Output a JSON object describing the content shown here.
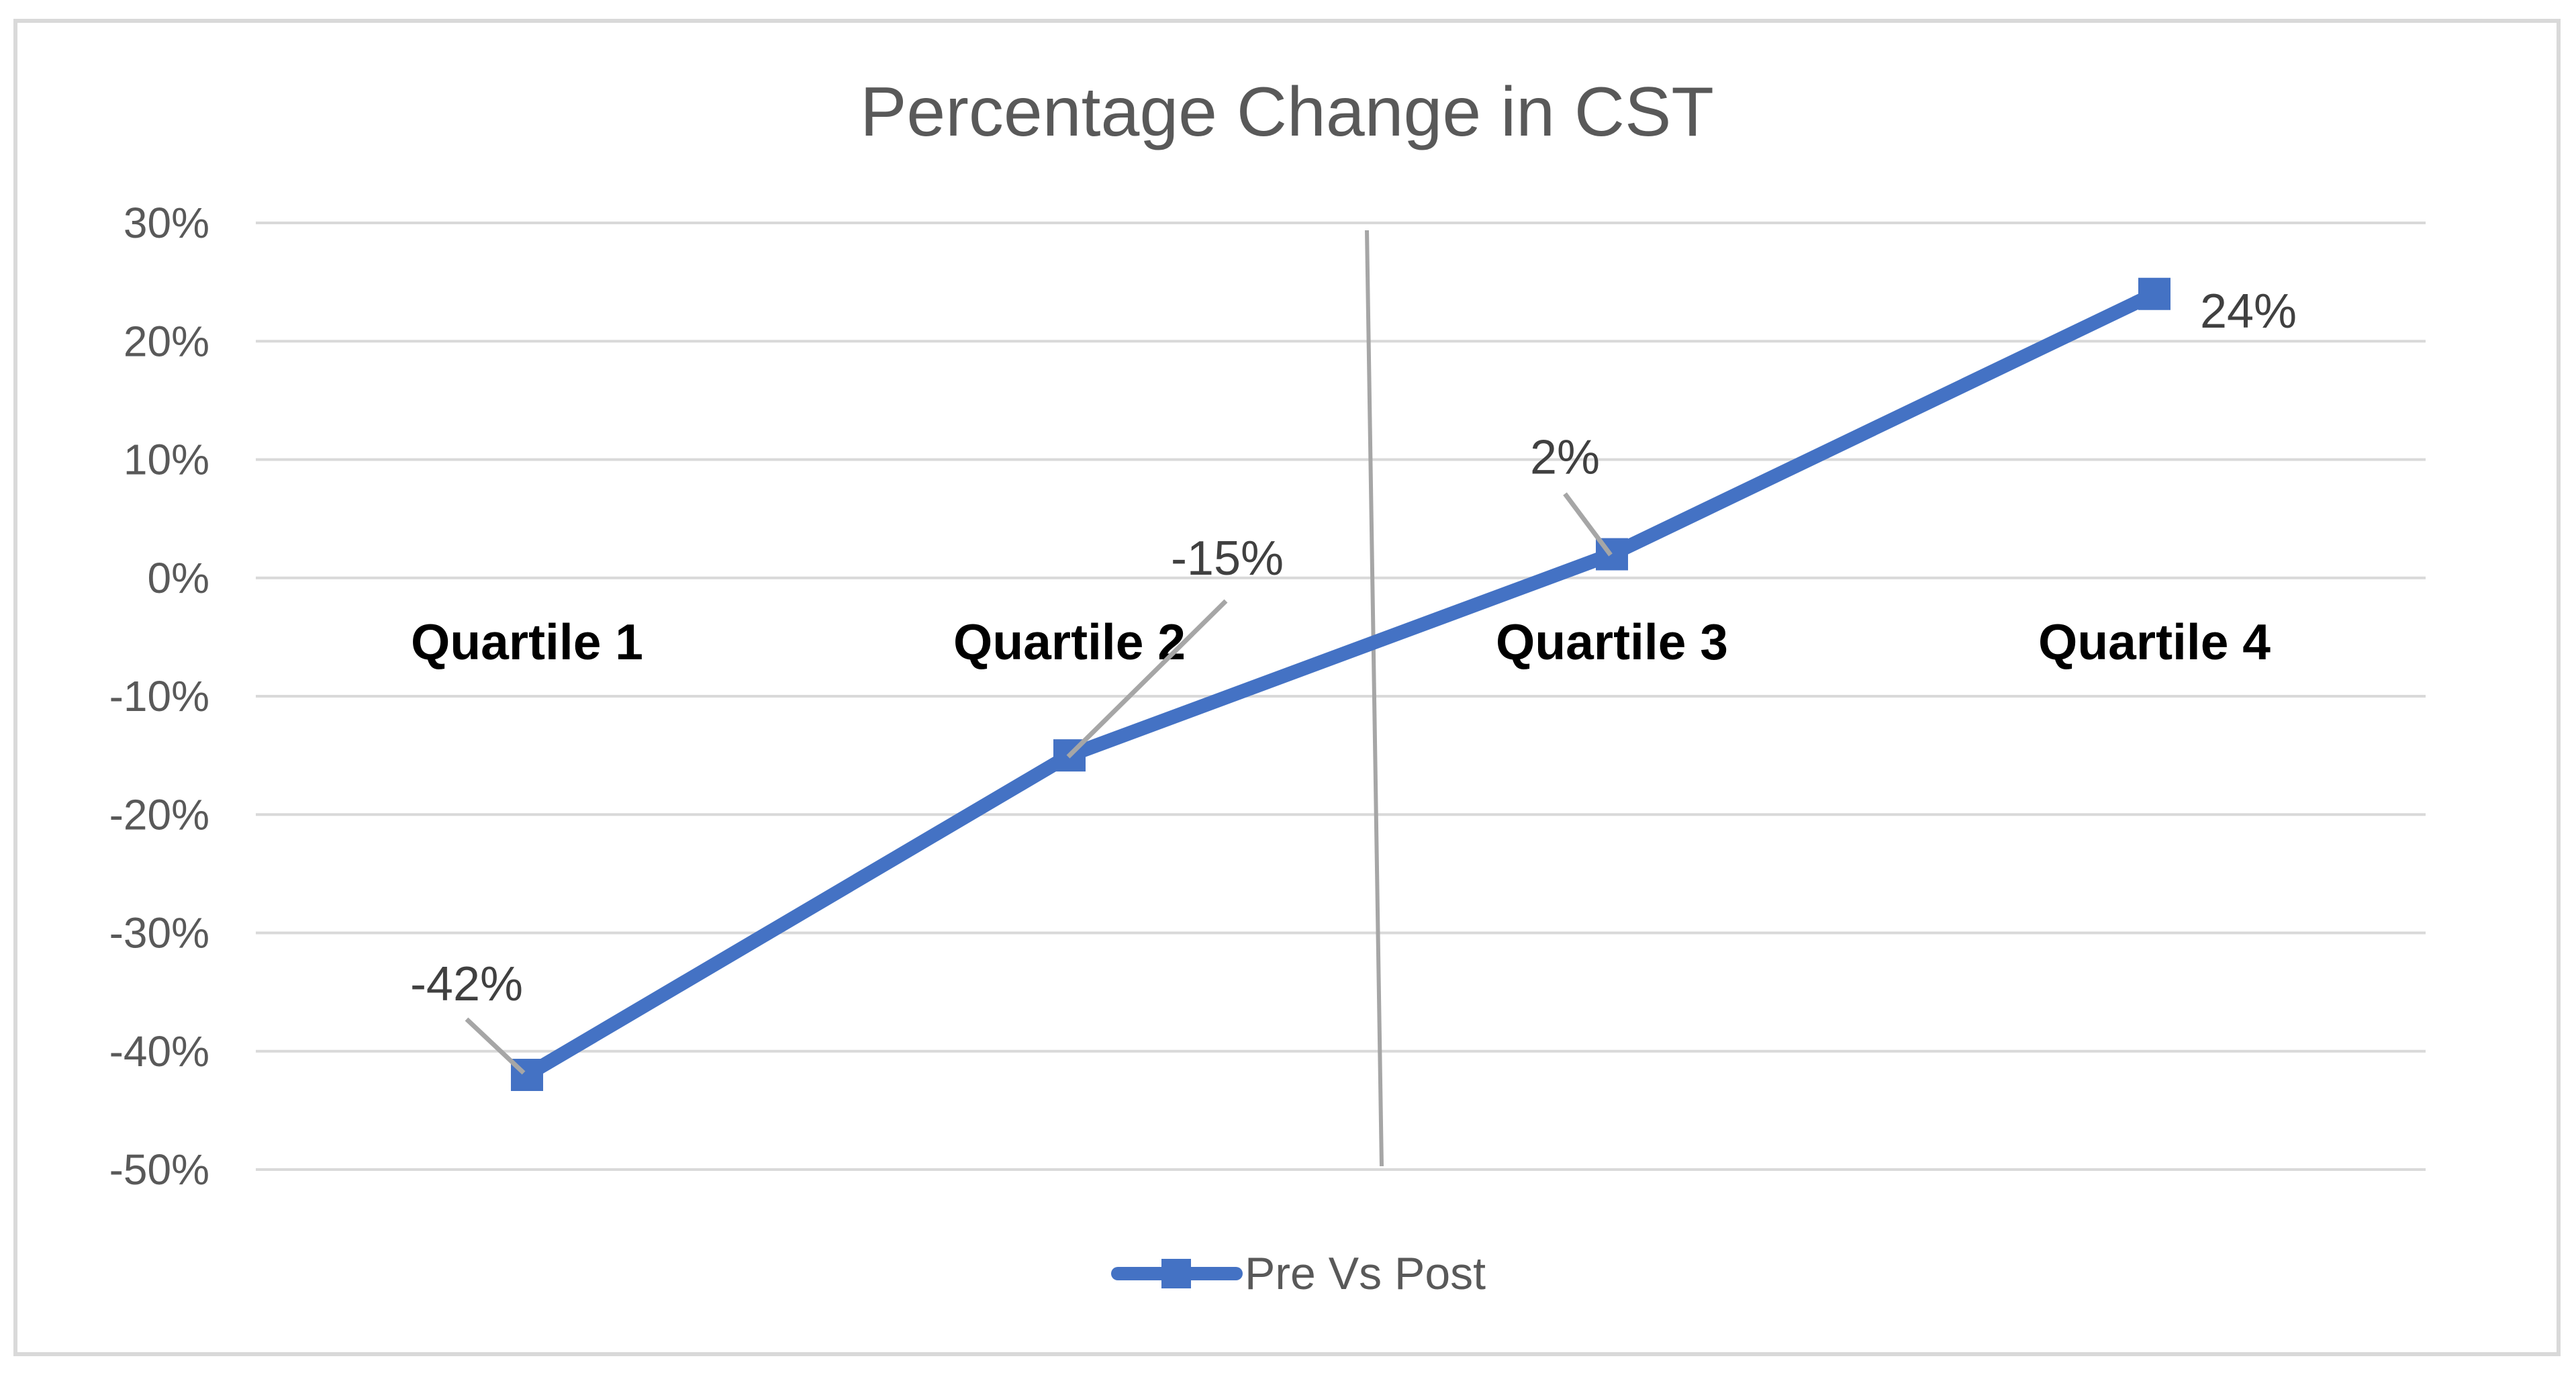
{
  "chart_data": {
    "type": "line",
    "title": "Percentage Change in CST",
    "categories": [
      "Quartile 1",
      "Quartile 2",
      "Quartile 3",
      "Quartile 4"
    ],
    "series": [
      {
        "name": "Pre Vs Post",
        "values": [
          -42,
          -15,
          2,
          24
        ],
        "data_labels": [
          "-42%",
          "-15%",
          "2%",
          "24%"
        ],
        "color": "#4472C4",
        "marker": "square"
      }
    ],
    "xlabel": "",
    "ylabel": "",
    "ylim": [
      -50,
      30
    ],
    "ytick_step": 10,
    "yticks": [
      30,
      20,
      10,
      0,
      -10,
      -20,
      -30,
      -40,
      -50
    ],
    "ytick_labels": [
      "30%",
      "20%",
      "10%",
      "0%",
      "-10%",
      "-20%",
      "-30%",
      "-40%",
      "-50%"
    ],
    "grid": true,
    "legend_position": "bottom",
    "divider_line_between": [
      "Quartile 2",
      "Quartile 3"
    ],
    "colors": {
      "series": "#4472C4",
      "gridline": "#D9D9D9",
      "frame": "#D9D9D9",
      "axis_text": "#595959",
      "title_text": "#595959",
      "data_label_text": "#404040",
      "category_text": "#000000",
      "leader_line": "#A6A6A6",
      "divider_line": "#A6A6A6",
      "background": "#FFFFFF"
    }
  }
}
